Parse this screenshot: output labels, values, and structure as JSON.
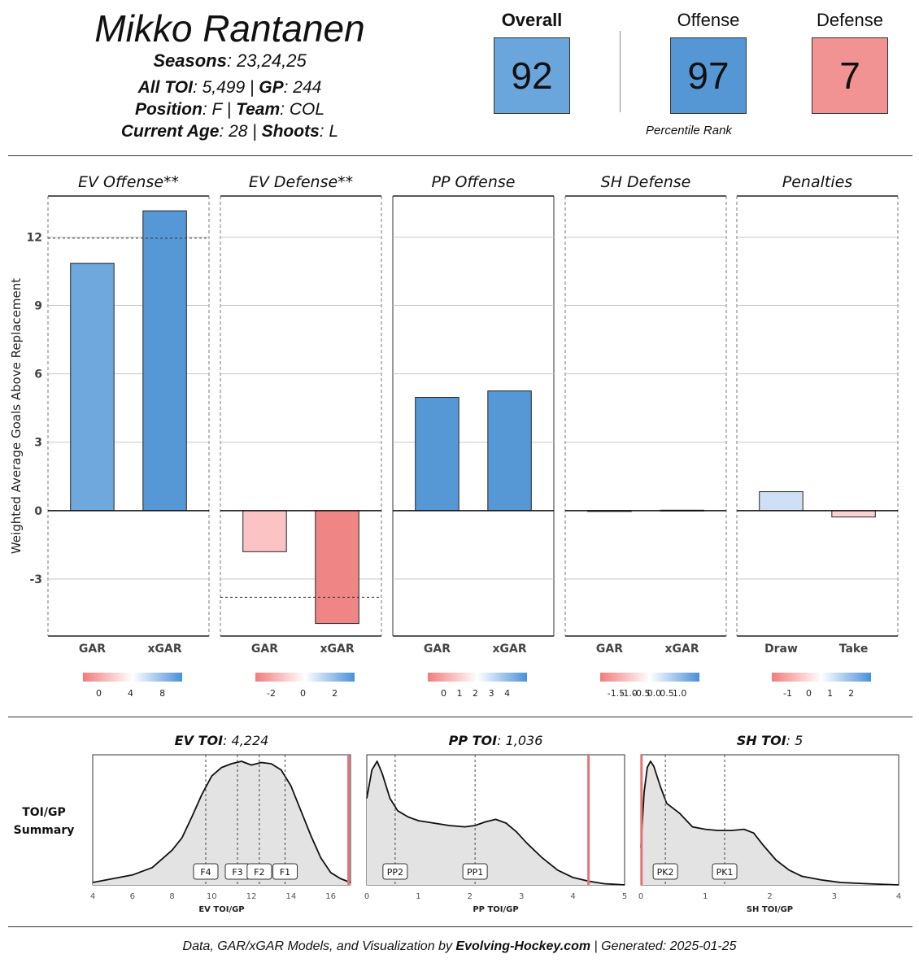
{
  "header": {
    "player_name": "Mikko Rantanen",
    "seasons_label": "Seasons",
    "seasons_value": ": 23,24,25",
    "toi_label": "All TOI",
    "toi_value": ": 5,499 | ",
    "gp_label": "GP",
    "gp_value": ": 244",
    "position_label": "Position",
    "position_value": ": F | ",
    "team_label": "Team",
    "team_value": ": COL",
    "age_label": "Current Age",
    "age_value": ": 28 | ",
    "shoots_label": "Shoots",
    "shoots_value": ": L"
  },
  "scores": {
    "overall": {
      "label": "Overall",
      "value": "92",
      "color": "#6aa6dc"
    },
    "offense": {
      "label": "Offense",
      "value": "97",
      "color": "#5597d4"
    },
    "defense": {
      "label": "Defense",
      "value": "7",
      "color": "#f29393"
    },
    "caption": "Percentile Rank"
  },
  "chart_data": [
    {
      "type": "bar",
      "ylabel": "Weighted Average Goals Above Replacement",
      "ylim": [
        -5.5,
        13.8
      ],
      "yticks": [
        -3,
        0,
        3,
        6,
        9,
        12
      ],
      "panels": [
        {
          "title": "EV Offense**",
          "categories": [
            "GAR",
            "xGAR"
          ],
          "values": [
            10.85,
            13.15
          ],
          "colors": [
            "#6ea8dd",
            "#5598d5"
          ],
          "reference": 11.95,
          "dashed_border": true,
          "legend": {
            "gradient": [
              "#f07d7d",
              "#ffffff",
              "#4a90d9"
            ],
            "ticks": [
              "0",
              "4",
              "8"
            ]
          }
        },
        {
          "title": "EV Defense**",
          "categories": [
            "GAR",
            "xGAR"
          ],
          "values": [
            -1.8,
            -4.95
          ],
          "colors": [
            "#fbc3c3",
            "#ef8585"
          ],
          "reference": -3.8,
          "dashed_border": true,
          "legend": {
            "gradient": [
              "#f07d7d",
              "#ffffff",
              "#4a90d9"
            ],
            "ticks": [
              "-2",
              "0",
              "2"
            ]
          }
        },
        {
          "title": "PP Offense",
          "categories": [
            "GAR",
            "xGAR"
          ],
          "values": [
            4.97,
            5.25
          ],
          "colors": [
            "#5598d5",
            "#5598d5"
          ],
          "reference": null,
          "dashed_border": false,
          "legend": {
            "gradient": [
              "#f07d7d",
              "#ffffff",
              "#4a90d9"
            ],
            "ticks": [
              "0",
              "1",
              "2",
              "3",
              "4"
            ]
          }
        },
        {
          "title": "SH Defense",
          "categories": [
            "GAR",
            "xGAR"
          ],
          "values": [
            -0.02,
            0.02
          ],
          "colors": [
            "#fde7e7",
            "#e6eef8"
          ],
          "reference": null,
          "dashed_border": true,
          "legend": {
            "gradient": [
              "#f07d7d",
              "#ffffff",
              "#4a90d9"
            ],
            "ticks": [
              "-1.5",
              "-1.0",
              "-0.5",
              "0.0",
              "0.5",
              "1.0"
            ]
          }
        },
        {
          "title": "Penalties",
          "categories": [
            "Draw",
            "Take"
          ],
          "values": [
            0.83,
            -0.28
          ],
          "colors": [
            "#cfe0f4",
            "#fbd3d3"
          ],
          "reference": null,
          "dashed_border": true,
          "legend": {
            "gradient": [
              "#f07d7d",
              "#ffffff",
              "#4a90d9"
            ],
            "ticks": [
              "-1",
              "0",
              "1",
              "2"
            ]
          }
        }
      ]
    },
    {
      "type": "area",
      "row_label_1": "TOI/GP",
      "row_label_2": "Summary",
      "panels": [
        {
          "title_label": "EV TOI",
          "title_value": ": 4,224",
          "xlabel": "EV TOI/GP",
          "xlim": [
            4,
            17
          ],
          "xticks": [
            4,
            6,
            8,
            10,
            12,
            14,
            16
          ],
          "player_value": 16.9,
          "x": [
            4,
            5,
            6,
            7,
            8,
            8.5,
            9,
            9.5,
            10,
            10.5,
            11,
            11.5,
            12,
            12.5,
            13,
            13.5,
            14,
            14.5,
            15,
            15.5,
            16,
            16.5,
            17
          ],
          "y": [
            0.02,
            0.05,
            0.08,
            0.14,
            0.28,
            0.38,
            0.55,
            0.73,
            0.88,
            0.95,
            0.98,
            1.0,
            0.97,
            0.99,
            0.98,
            0.93,
            0.8,
            0.6,
            0.4,
            0.22,
            0.1,
            0.05,
            0.02
          ],
          "markers": [
            {
              "label": "F4",
              "x": 9.7
            },
            {
              "label": "F3",
              "x": 11.3
            },
            {
              "label": "F2",
              "x": 12.4
            },
            {
              "label": "F1",
              "x": 13.7
            }
          ]
        },
        {
          "title_label": "PP TOI",
          "title_value": ": 1,036",
          "xlabel": "PP TOI/GP",
          "xlim": [
            0,
            5
          ],
          "xticks": [
            0,
            1,
            2,
            3,
            4,
            5
          ],
          "player_value": 4.3,
          "x": [
            0,
            0.1,
            0.2,
            0.3,
            0.45,
            0.6,
            0.8,
            1.0,
            1.3,
            1.6,
            1.9,
            2.1,
            2.3,
            2.5,
            2.7,
            2.9,
            3.1,
            3.4,
            3.7,
            4.0,
            4.3,
            4.6,
            5.0
          ],
          "y": [
            0.7,
            0.93,
            1.0,
            0.9,
            0.7,
            0.6,
            0.55,
            0.52,
            0.5,
            0.48,
            0.47,
            0.48,
            0.51,
            0.53,
            0.5,
            0.43,
            0.34,
            0.22,
            0.12,
            0.06,
            0.03,
            0.01,
            0.0
          ],
          "markers": [
            {
              "label": "PP2",
              "x": 0.55
            },
            {
              "label": "PP1",
              "x": 2.1
            }
          ]
        },
        {
          "title_label": "SH TOI",
          "title_value": ": 5",
          "xlabel": "SH TOI/GP",
          "xlim": [
            0,
            4
          ],
          "xticks": [
            0,
            1,
            2,
            3,
            4
          ],
          "player_value": 0.01,
          "x": [
            0,
            0.05,
            0.1,
            0.15,
            0.2,
            0.3,
            0.4,
            0.6,
            0.8,
            1.0,
            1.2,
            1.4,
            1.6,
            1.75,
            1.9,
            2.1,
            2.3,
            2.5,
            2.8,
            3.1,
            3.5,
            4.0
          ],
          "y": [
            0.3,
            0.75,
            0.95,
            1.0,
            0.96,
            0.8,
            0.66,
            0.58,
            0.47,
            0.45,
            0.44,
            0.44,
            0.45,
            0.42,
            0.32,
            0.2,
            0.12,
            0.07,
            0.04,
            0.02,
            0.01,
            0.0
          ],
          "markers": [
            {
              "label": "PK2",
              "x": 0.38
            },
            {
              "label": "PK1",
              "x": 1.3
            }
          ]
        }
      ]
    }
  ],
  "footer": {
    "prefix": "Data, GAR/xGAR Models, and Visualization by ",
    "brand": "Evolving-Hockey.com",
    "suffix": " | Generated: 2025-01-25"
  }
}
